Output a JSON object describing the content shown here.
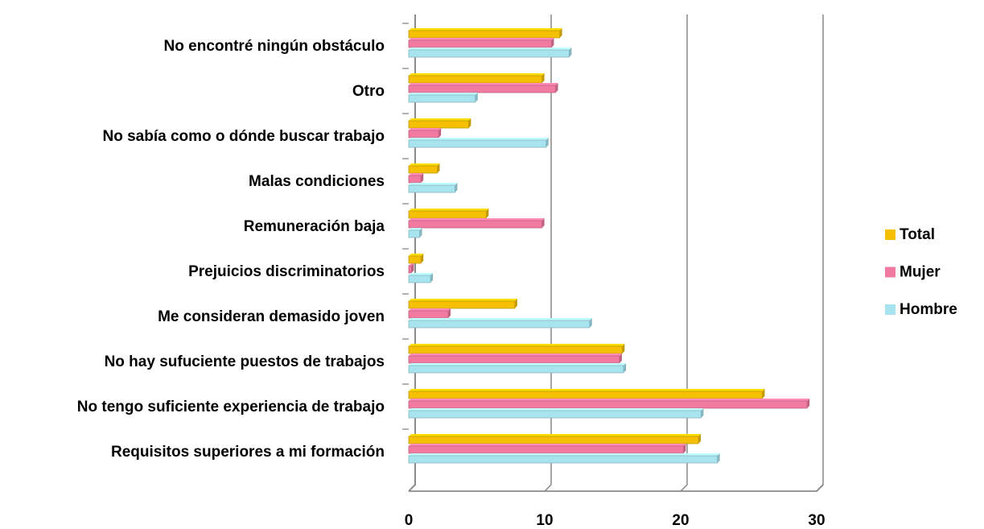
{
  "chart_data": {
    "type": "bar",
    "orientation": "horizontal",
    "categories": [
      "No encontré ningún obstáculo",
      "Otro",
      "No sabía como o dónde buscar trabajo",
      "Malas condiciones",
      "Remuneración baja",
      "Prejuicios discriminatorios",
      "Me consideran demasido joven",
      "No hay sufuciente puestos de trabajos",
      "No tengo suficiente experiencia de trabajo",
      "Requisitos superiores a mi formación"
    ],
    "series": [
      {
        "name": "Total",
        "color": "#f5c000",
        "values": [
          11.1,
          9.8,
          4.4,
          2.1,
          5.7,
          0.9,
          7.8,
          15.7,
          26.0,
          21.3
        ]
      },
      {
        "name": "Mujer",
        "color": "#f07aa0",
        "values": [
          10.5,
          10.8,
          2.2,
          0.9,
          9.8,
          0.2,
          2.9,
          15.5,
          29.3,
          20.2
        ]
      },
      {
        "name": "Hombre",
        "color": "#a8e4f0",
        "values": [
          11.8,
          4.9,
          10.1,
          3.4,
          0.8,
          1.6,
          13.3,
          15.8,
          21.5,
          22.7
        ]
      }
    ],
    "xlim": [
      0,
      30
    ],
    "xticks": [
      0,
      10,
      20,
      30
    ],
    "grid": true,
    "legend": "right"
  }
}
